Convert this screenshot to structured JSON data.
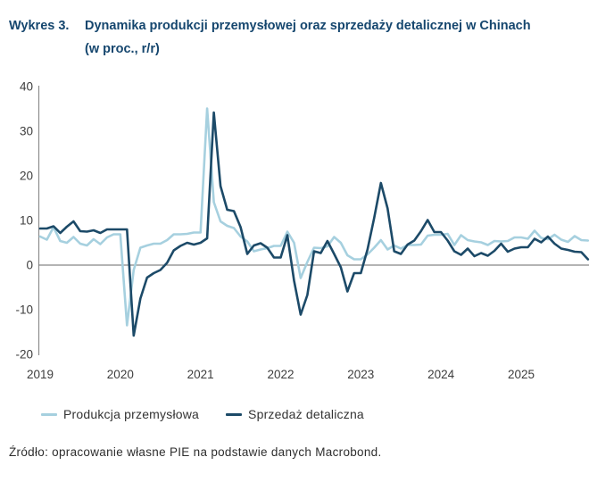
{
  "figure": {
    "label": "Wykres 3.",
    "title_line1": "Dynamika produkcji przemysłowej oraz sprzedaży detalicznej w Chinach",
    "title_line2": "(w proc., r/r)",
    "source": "Źródło: opracowanie własne PIE na podstawie danych Macrobond."
  },
  "colors": {
    "title_navy": "#15466e",
    "produkcja_line": "#a6d0df",
    "sprzedaz_line": "#1c4a68",
    "axis_text": "#3d3d3d",
    "axis_line": "#8c8c8c",
    "zero_line": "#6a6a6a",
    "legend_text": "#333333",
    "source_text": "#2e2e2e",
    "background": "#ffffff"
  },
  "chart_data": {
    "type": "line",
    "title": "Dynamika produkcji przemysłowej oraz sprzedaży detalicznej w Chinach (w proc., r/r)",
    "xlabel": "",
    "ylabel": "",
    "x_unit": "month",
    "x_range": [
      "2019-01",
      "2025-11"
    ],
    "x_tick_labels": [
      "2019",
      "2020",
      "2021",
      "2022",
      "2023",
      "2024",
      "2025"
    ],
    "months_per_tick": 12,
    "ylim": [
      -20,
      40
    ],
    "y_ticks": [
      40,
      30,
      20,
      10,
      0,
      -10,
      -20
    ],
    "grid": "zero-line-only",
    "legend_position": "bottom-left",
    "series": [
      {
        "name": "Produkcja przemysłowa",
        "color_key": "produkcja_line",
        "values": [
          6.4,
          5.7,
          8.5,
          5.4,
          5.0,
          6.3,
          4.8,
          4.4,
          5.8,
          4.7,
          6.2,
          6.9,
          6.9,
          -13.5,
          -1.1,
          3.9,
          4.4,
          4.8,
          4.8,
          5.6,
          6.9,
          6.9,
          7.0,
          7.3,
          7.3,
          35.1,
          14.1,
          9.8,
          8.8,
          8.3,
          6.4,
          5.3,
          3.1,
          3.5,
          3.8,
          4.3,
          4.3,
          7.5,
          5.0,
          -2.9,
          0.7,
          3.9,
          3.8,
          4.2,
          6.3,
          5.0,
          2.2,
          1.3,
          1.3,
          2.4,
          3.9,
          5.6,
          3.5,
          4.4,
          3.7,
          4.5,
          4.5,
          4.6,
          6.6,
          6.8,
          6.8,
          7.0,
          4.5,
          6.7,
          5.6,
          5.3,
          5.1,
          4.5,
          5.4,
          5.3,
          5.4,
          6.2,
          6.2,
          5.9,
          7.7,
          6.1,
          5.8,
          6.8,
          5.7,
          5.2,
          6.5,
          5.6,
          5.5
        ]
      },
      {
        "name": "Sprzedaż detaliczna",
        "color_key": "sprzedaz_line",
        "values": [
          8.2,
          8.2,
          8.7,
          7.2,
          8.6,
          9.8,
          7.6,
          7.5,
          7.8,
          7.2,
          8.0,
          8.0,
          8.0,
          8.0,
          -15.8,
          -7.5,
          -2.8,
          -1.8,
          -1.1,
          0.5,
          3.3,
          4.3,
          5.0,
          4.6,
          5.0,
          6.0,
          34.2,
          17.7,
          12.4,
          12.1,
          8.5,
          2.5,
          4.4,
          4.9,
          3.9,
          1.7,
          1.7,
          6.7,
          -3.5,
          -11.1,
          -6.7,
          3.1,
          2.7,
          5.4,
          2.5,
          -0.5,
          -5.9,
          -1.8,
          -1.8,
          3.5,
          10.6,
          18.4,
          12.7,
          3.1,
          2.5,
          4.6,
          5.5,
          7.6,
          10.1,
          7.4,
          7.4,
          5.5,
          3.1,
          2.3,
          3.7,
          2.0,
          2.7,
          2.1,
          3.2,
          4.8,
          3.0,
          3.7,
          4.0,
          4.0,
          5.9,
          5.1,
          6.4,
          4.8,
          3.7,
          3.4,
          3.0,
          2.9,
          1.3
        ]
      }
    ]
  }
}
